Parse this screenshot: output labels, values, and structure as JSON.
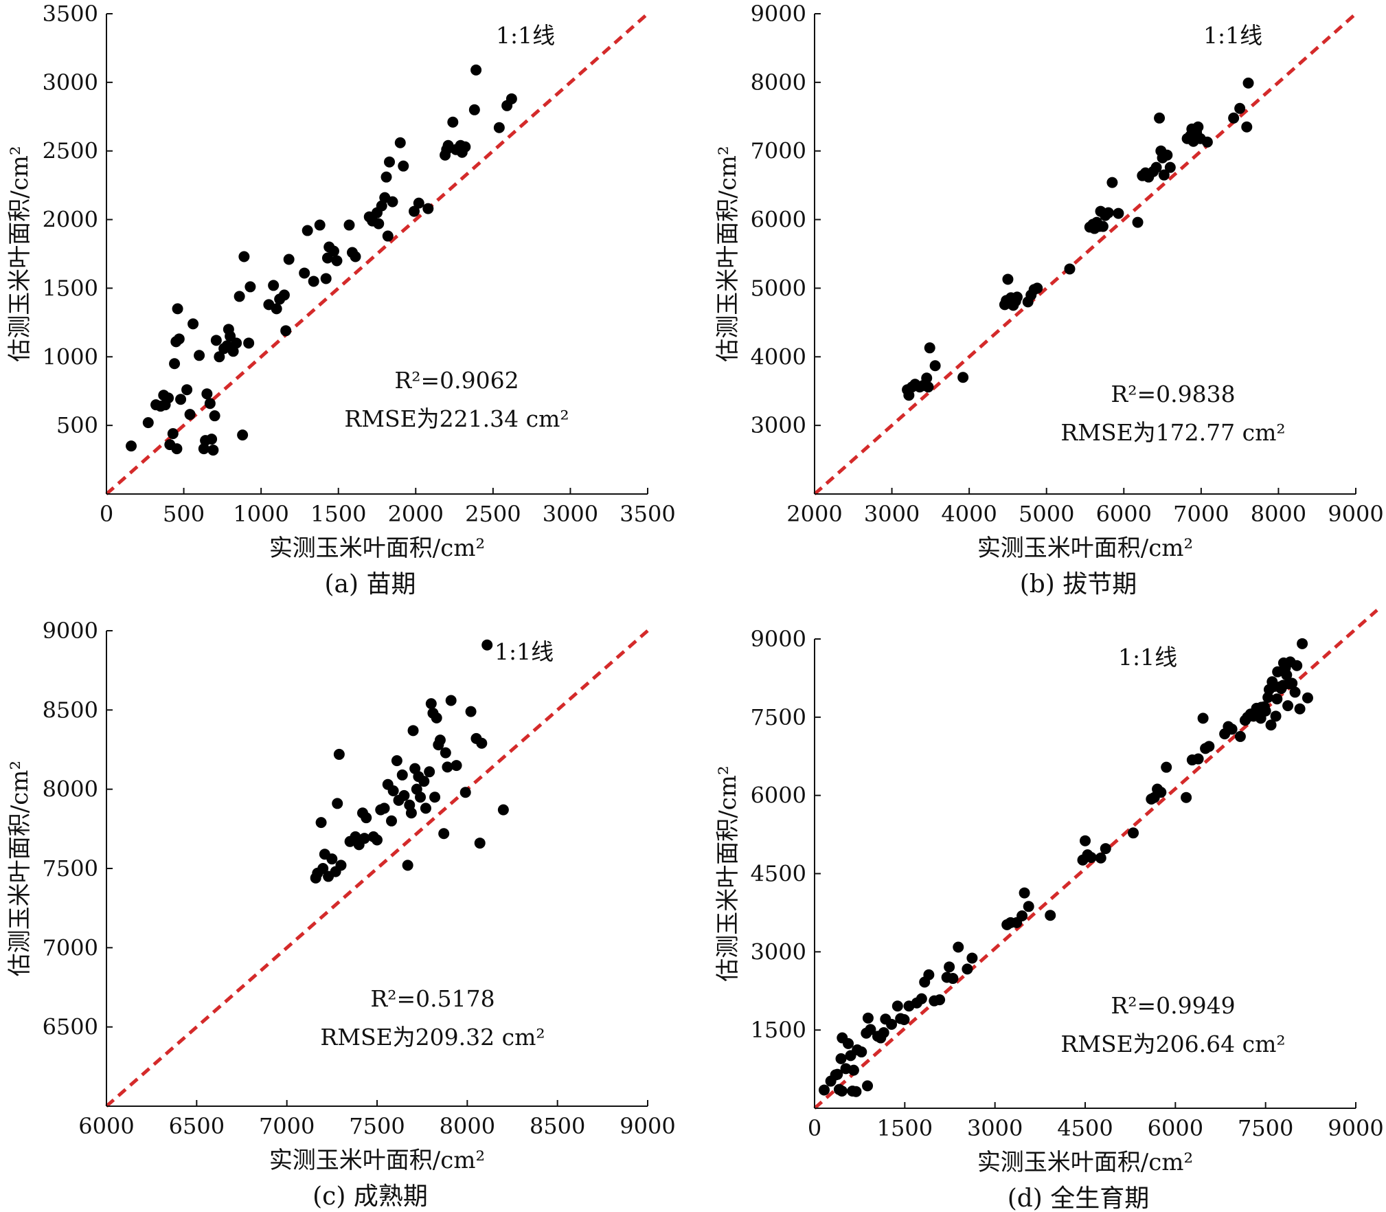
{
  "chart_data": [
    {
      "type": "scatter",
      "caption": "(a) 苗期",
      "xlabel": "实测玉米叶面积/cm²",
      "ylabel": "估测玉米叶面积/cm²",
      "xlim": [
        0,
        3500
      ],
      "ylim": [
        0,
        3500
      ],
      "xticks": [
        0,
        500,
        1000,
        1500,
        2000,
        2500,
        3000,
        3500
      ],
      "yticks": [
        500,
        1000,
        1500,
        2000,
        2500,
        3000,
        3500
      ],
      "ref_line_label": "1:1线",
      "r2_label": "R²=0.9062",
      "rmse_label": "RMSE为221.34 cm²",
      "points": [
        [
          160,
          350
        ],
        [
          270,
          520
        ],
        [
          320,
          650
        ],
        [
          350,
          640
        ],
        [
          370,
          720
        ],
        [
          380,
          650
        ],
        [
          400,
          700
        ],
        [
          410,
          360
        ],
        [
          430,
          440
        ],
        [
          440,
          950
        ],
        [
          450,
          1110
        ],
        [
          455,
          330
        ],
        [
          460,
          1350
        ],
        [
          470,
          1130
        ],
        [
          480,
          690
        ],
        [
          520,
          760
        ],
        [
          540,
          580
        ],
        [
          560,
          1240
        ],
        [
          600,
          1010
        ],
        [
          630,
          330
        ],
        [
          640,
          390
        ],
        [
          650,
          730
        ],
        [
          670,
          660
        ],
        [
          680,
          400
        ],
        [
          690,
          320
        ],
        [
          700,
          570
        ],
        [
          710,
          1120
        ],
        [
          730,
          1000
        ],
        [
          760,
          1060
        ],
        [
          780,
          1080
        ],
        [
          790,
          1200
        ],
        [
          800,
          1150
        ],
        [
          820,
          1040
        ],
        [
          840,
          1100
        ],
        [
          860,
          1440
        ],
        [
          880,
          430
        ],
        [
          890,
          1730
        ],
        [
          920,
          1100
        ],
        [
          930,
          1510
        ],
        [
          1050,
          1380
        ],
        [
          1080,
          1520
        ],
        [
          1100,
          1350
        ],
        [
          1120,
          1420
        ],
        [
          1150,
          1450
        ],
        [
          1160,
          1190
        ],
        [
          1180,
          1710
        ],
        [
          1280,
          1610
        ],
        [
          1300,
          1920
        ],
        [
          1340,
          1550
        ],
        [
          1380,
          1960
        ],
        [
          1420,
          1570
        ],
        [
          1430,
          1720
        ],
        [
          1440,
          1800
        ],
        [
          1470,
          1770
        ],
        [
          1490,
          1700
        ],
        [
          1570,
          1960
        ],
        [
          1590,
          1760
        ],
        [
          1610,
          1730
        ],
        [
          1700,
          2020
        ],
        [
          1720,
          1990
        ],
        [
          1750,
          2050
        ],
        [
          1760,
          1970
        ],
        [
          1780,
          2100
        ],
        [
          1800,
          2160
        ],
        [
          1810,
          2310
        ],
        [
          1820,
          1880
        ],
        [
          1830,
          2420
        ],
        [
          1850,
          2130
        ],
        [
          1900,
          2560
        ],
        [
          1920,
          2390
        ],
        [
          1990,
          2060
        ],
        [
          2020,
          2120
        ],
        [
          2080,
          2080
        ],
        [
          2190,
          2470
        ],
        [
          2200,
          2510
        ],
        [
          2210,
          2540
        ],
        [
          2240,
          2710
        ],
        [
          2260,
          2510
        ],
        [
          2290,
          2540
        ],
        [
          2300,
          2490
        ],
        [
          2320,
          2530
        ],
        [
          2380,
          2800
        ],
        [
          2390,
          3090
        ],
        [
          2540,
          2670
        ],
        [
          2590,
          2830
        ],
        [
          2620,
          2880
        ]
      ]
    },
    {
      "type": "scatter",
      "caption": "(b) 拔节期",
      "xlabel": "实测玉米叶面积/cm²",
      "ylabel": "估测玉米叶面积/cm²",
      "xlim": [
        2000,
        9000
      ],
      "ylim": [
        2000,
        9000
      ],
      "xticks": [
        2000,
        3000,
        4000,
        5000,
        6000,
        7000,
        8000,
        9000
      ],
      "yticks": [
        3000,
        4000,
        5000,
        6000,
        7000,
        8000,
        9000
      ],
      "ref_line_label": "1:1线",
      "r2_label": "R²=0.9838",
      "rmse_label": "RMSE为172.77 cm²",
      "points": [
        [
          3200,
          3520
        ],
        [
          3220,
          3440
        ],
        [
          3260,
          3560
        ],
        [
          3300,
          3600
        ],
        [
          3360,
          3560
        ],
        [
          3400,
          3580
        ],
        [
          3450,
          3690
        ],
        [
          3470,
          3560
        ],
        [
          3490,
          4130
        ],
        [
          3560,
          3870
        ],
        [
          3920,
          3700
        ],
        [
          4460,
          4760
        ],
        [
          4480,
          4820
        ],
        [
          4500,
          5130
        ],
        [
          4520,
          4780
        ],
        [
          4540,
          4860
        ],
        [
          4570,
          4750
        ],
        [
          4600,
          4810
        ],
        [
          4620,
          4870
        ],
        [
          4760,
          4800
        ],
        [
          4800,
          4900
        ],
        [
          4840,
          4980
        ],
        [
          4880,
          5000
        ],
        [
          5300,
          5280
        ],
        [
          5560,
          5890
        ],
        [
          5600,
          5930
        ],
        [
          5620,
          5870
        ],
        [
          5650,
          5960
        ],
        [
          5680,
          5900
        ],
        [
          5700,
          6120
        ],
        [
          5730,
          5900
        ],
        [
          5760,
          6060
        ],
        [
          5800,
          6100
        ],
        [
          5850,
          6540
        ],
        [
          5930,
          6090
        ],
        [
          6180,
          5960
        ],
        [
          6240,
          6640
        ],
        [
          6280,
          6680
        ],
        [
          6320,
          6620
        ],
        [
          6380,
          6700
        ],
        [
          6420,
          6760
        ],
        [
          6460,
          7480
        ],
        [
          6480,
          7000
        ],
        [
          6500,
          6900
        ],
        [
          6520,
          6650
        ],
        [
          6560,
          6940
        ],
        [
          6600,
          6760
        ],
        [
          6820,
          7180
        ],
        [
          6860,
          7220
        ],
        [
          6880,
          7320
        ],
        [
          6900,
          7140
        ],
        [
          6940,
          7270
        ],
        [
          6960,
          7350
        ],
        [
          6990,
          7180
        ],
        [
          7080,
          7130
        ],
        [
          7420,
          7480
        ],
        [
          7500,
          7620
        ],
        [
          7590,
          7350
        ],
        [
          7610,
          7990
        ]
      ]
    },
    {
      "type": "scatter",
      "caption": "(c) 成熟期",
      "xlabel": "实测玉米叶面积/cm²",
      "ylabel": "估测玉米叶面积/cm²",
      "xlim": [
        6000,
        9000
      ],
      "ylim": [
        6000,
        9000
      ],
      "xticks": [
        6000,
        6500,
        7000,
        7500,
        8000,
        8500,
        9000
      ],
      "yticks": [
        6500,
        7000,
        7500,
        8000,
        8500,
        9000
      ],
      "ref_line_label": "1:1线",
      "r2_label": "R²=0.5178",
      "rmse_label": "RMSE为209.32 cm²",
      "points": [
        [
          7160,
          7440
        ],
        [
          7170,
          7470
        ],
        [
          7190,
          7790
        ],
        [
          7200,
          7500
        ],
        [
          7210,
          7590
        ],
        [
          7230,
          7450
        ],
        [
          7250,
          7560
        ],
        [
          7270,
          7480
        ],
        [
          7280,
          7910
        ],
        [
          7290,
          8220
        ],
        [
          7300,
          7520
        ],
        [
          7350,
          7670
        ],
        [
          7380,
          7700
        ],
        [
          7400,
          7650
        ],
        [
          7420,
          7850
        ],
        [
          7430,
          7690
        ],
        [
          7440,
          7820
        ],
        [
          7480,
          7700
        ],
        [
          7500,
          7680
        ],
        [
          7520,
          7870
        ],
        [
          7540,
          7880
        ],
        [
          7560,
          8030
        ],
        [
          7580,
          7800
        ],
        [
          7590,
          7990
        ],
        [
          7610,
          8180
        ],
        [
          7620,
          7930
        ],
        [
          7640,
          8090
        ],
        [
          7650,
          7960
        ],
        [
          7670,
          7520
        ],
        [
          7680,
          7900
        ],
        [
          7690,
          7850
        ],
        [
          7700,
          8370
        ],
        [
          7710,
          8130
        ],
        [
          7720,
          8000
        ],
        [
          7730,
          8080
        ],
        [
          7740,
          7950
        ],
        [
          7760,
          8050
        ],
        [
          7770,
          7880
        ],
        [
          7790,
          8110
        ],
        [
          7800,
          8540
        ],
        [
          7810,
          8480
        ],
        [
          7820,
          7950
        ],
        [
          7830,
          8450
        ],
        [
          7840,
          8280
        ],
        [
          7850,
          8310
        ],
        [
          7870,
          7720
        ],
        [
          7880,
          8230
        ],
        [
          7890,
          8140
        ],
        [
          7910,
          8560
        ],
        [
          7940,
          8150
        ],
        [
          7990,
          7980
        ],
        [
          8020,
          8490
        ],
        [
          8050,
          8320
        ],
        [
          8070,
          7660
        ],
        [
          8080,
          8290
        ],
        [
          8110,
          8910
        ],
        [
          8200,
          7870
        ]
      ]
    },
    {
      "type": "scatter",
      "caption": "(d) 全生育期",
      "xlabel": "实测玉米叶面积/cm²",
      "ylabel": "估测玉米叶面积/cm²",
      "xlim": [
        0,
        9000
      ],
      "ylim": [
        0,
        9000
      ],
      "xticks": [
        0,
        1500,
        3000,
        4500,
        6000,
        7500,
        9000
      ],
      "yticks": [
        1500,
        3000,
        4500,
        6000,
        7500,
        9000
      ],
      "ref_line_label": "1:1线",
      "r2_label": "R²=0.9949",
      "rmse_label": "RMSE为206.64 cm²",
      "points": [
        [
          160,
          350
        ],
        [
          270,
          520
        ],
        [
          350,
          640
        ],
        [
          380,
          650
        ],
        [
          410,
          360
        ],
        [
          440,
          950
        ],
        [
          455,
          330
        ],
        [
          460,
          1350
        ],
        [
          520,
          760
        ],
        [
          560,
          1240
        ],
        [
          600,
          1010
        ],
        [
          630,
          330
        ],
        [
          650,
          730
        ],
        [
          690,
          320
        ],
        [
          710,
          1120
        ],
        [
          780,
          1080
        ],
        [
          860,
          1440
        ],
        [
          880,
          430
        ],
        [
          890,
          1730
        ],
        [
          930,
          1510
        ],
        [
          1050,
          1380
        ],
        [
          1100,
          1350
        ],
        [
          1150,
          1450
        ],
        [
          1180,
          1710
        ],
        [
          1280,
          1610
        ],
        [
          1380,
          1960
        ],
        [
          1430,
          1720
        ],
        [
          1490,
          1700
        ],
        [
          1570,
          1960
        ],
        [
          1700,
          2020
        ],
        [
          1780,
          2100
        ],
        [
          1830,
          2420
        ],
        [
          1900,
          2560
        ],
        [
          1990,
          2060
        ],
        [
          2080,
          2080
        ],
        [
          2200,
          2510
        ],
        [
          2240,
          2710
        ],
        [
          2300,
          2490
        ],
        [
          2390,
          3090
        ],
        [
          2540,
          2670
        ],
        [
          2620,
          2880
        ],
        [
          3200,
          3520
        ],
        [
          3260,
          3560
        ],
        [
          3360,
          3560
        ],
        [
          3450,
          3690
        ],
        [
          3490,
          4130
        ],
        [
          3560,
          3870
        ],
        [
          3920,
          3700
        ],
        [
          4460,
          4760
        ],
        [
          4500,
          5130
        ],
        [
          4540,
          4860
        ],
        [
          4600,
          4810
        ],
        [
          4760,
          4800
        ],
        [
          4840,
          4980
        ],
        [
          5300,
          5280
        ],
        [
          5600,
          5930
        ],
        [
          5650,
          5960
        ],
        [
          5700,
          6120
        ],
        [
          5760,
          6060
        ],
        [
          5850,
          6540
        ],
        [
          6180,
          5960
        ],
        [
          6280,
          6680
        ],
        [
          6380,
          6700
        ],
        [
          6460,
          7480
        ],
        [
          6500,
          6900
        ],
        [
          6560,
          6940
        ],
        [
          6820,
          7180
        ],
        [
          6880,
          7320
        ],
        [
          6940,
          7270
        ],
        [
          7080,
          7130
        ],
        [
          7160,
          7440
        ],
        [
          7200,
          7500
        ],
        [
          7250,
          7560
        ],
        [
          7300,
          7520
        ],
        [
          7350,
          7670
        ],
        [
          7400,
          7650
        ],
        [
          7420,
          7480
        ],
        [
          7430,
          7690
        ],
        [
          7480,
          7700
        ],
        [
          7500,
          7620
        ],
        [
          7540,
          7880
        ],
        [
          7560,
          8030
        ],
        [
          7590,
          7350
        ],
        [
          7610,
          8180
        ],
        [
          7640,
          8090
        ],
        [
          7670,
          7520
        ],
        [
          7690,
          7850
        ],
        [
          7700,
          8370
        ],
        [
          7730,
          8080
        ],
        [
          7760,
          8050
        ],
        [
          7790,
          8110
        ],
        [
          7800,
          8540
        ],
        [
          7830,
          8450
        ],
        [
          7850,
          8310
        ],
        [
          7870,
          7720
        ],
        [
          7890,
          8140
        ],
        [
          7910,
          8560
        ],
        [
          7940,
          8150
        ],
        [
          7990,
          7980
        ],
        [
          8020,
          8490
        ],
        [
          8070,
          7660
        ],
        [
          8110,
          8910
        ],
        [
          8200,
          7870
        ]
      ]
    }
  ]
}
